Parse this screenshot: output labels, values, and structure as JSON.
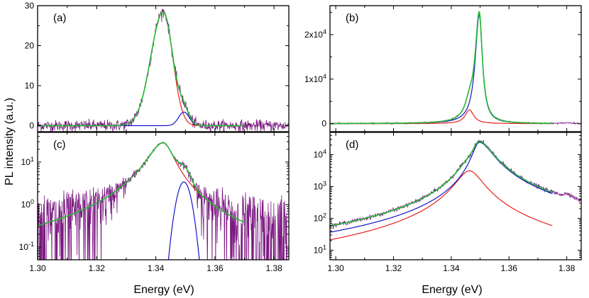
{
  "figure": {
    "ylabel": "PL intensity (a.u.)",
    "xlabel_left": "Energy (eV)",
    "xlabel_right": "Energy (eV)"
  },
  "colors": {
    "data": "#7b1a80",
    "fit_main": "#e8201e",
    "fit_side": "#1414c8",
    "fit_total": "#22bb33"
  },
  "chart_data": [
    {
      "panel": "(a)",
      "type": "line",
      "xlim": [
        1.3,
        1.385
      ],
      "ylim": [
        -1.5,
        30
      ],
      "yscale": "linear",
      "yticks": [
        {
          "v": 0,
          "label": "0"
        },
        {
          "v": 10,
          "label": "10"
        },
        {
          "v": 20,
          "label": "20"
        },
        {
          "v": 30,
          "label": "30"
        }
      ],
      "xticks": [],
      "noise": 0.7,
      "data_range": [
        1.3,
        1.385
      ],
      "fit_range": [
        1.3,
        1.37
      ],
      "peaks": [
        {
          "role": "main",
          "center": 1.3425,
          "amplitude": 28.5,
          "width_left": 0.0042,
          "width_right": 0.0032
        },
        {
          "role": "side",
          "center": 1.3495,
          "amplitude": 3.4,
          "width_left": 0.0018,
          "width_right": 0.0018
        }
      ]
    },
    {
      "panel": "(b)",
      "type": "line",
      "xlim": [
        1.298,
        1.385
      ],
      "ylim": [
        -1800,
        26500
      ],
      "yscale": "linear",
      "yticks": [
        {
          "v": 0,
          "label": "0"
        },
        {
          "v": 10000,
          "label": "1x10^4"
        },
        {
          "v": 20000,
          "label": "2x10^4"
        }
      ],
      "xticks": [],
      "noise": 80,
      "data_range": [
        1.298,
        1.385
      ],
      "fit_range": [
        1.298,
        1.375
      ],
      "peaks": [
        {
          "role": "main",
          "center": 1.3463,
          "amplitude": 3100,
          "width_left": 0.0018,
          "width_right": 0.0018,
          "lorentz": true
        },
        {
          "role": "side",
          "center": 1.3497,
          "amplitude": 24500,
          "width_left": 0.0017,
          "width_right": 0.0013,
          "lorentz": true
        }
      ],
      "side_peak": {
        "center": 1.3805,
        "amplitude": 150
      }
    },
    {
      "panel": "(c)",
      "type": "line",
      "xlim": [
        1.3,
        1.385
      ],
      "ylim": [
        0.05,
        50
      ],
      "yscale": "log",
      "yticks": [
        {
          "v": 0.1,
          "label": "10^-1"
        },
        {
          "v": 1,
          "label": "10^0"
        },
        {
          "v": 10,
          "label": "10^1"
        }
      ],
      "xticks": [
        "1.30",
        "1.32",
        "1.34",
        "1.36",
        "1.38"
      ],
      "noise": 0.7,
      "data_range": [
        1.3,
        1.385
      ],
      "fit_range": [
        1.3,
        1.37
      ],
      "peaks": [
        {
          "role": "main",
          "center": 1.3425,
          "amplitude": 28.5,
          "width_left": 0.0045,
          "width_right": 0.0032,
          "lorentz": true
        },
        {
          "role": "side",
          "center": 1.3495,
          "amplitude": 3.4,
          "width_left": 0.0018,
          "width_right": 0.0018
        }
      ]
    },
    {
      "panel": "(d)",
      "type": "line",
      "xlim": [
        1.298,
        1.385
      ],
      "ylim": [
        5,
        50000
      ],
      "yscale": "log",
      "yticks": [
        {
          "v": 10,
          "label": "10^1"
        },
        {
          "v": 100,
          "label": "10^2"
        },
        {
          "v": 1000,
          "label": "10^3"
        },
        {
          "v": 10000,
          "label": "10^4"
        }
      ],
      "xticks": [
        "1.30",
        "1.32",
        "1.34",
        "1.36",
        "1.38"
      ],
      "noise": 0.25,
      "data_range": [
        1.298,
        1.385
      ],
      "fit_range": [
        1.298,
        1.375
      ],
      "peaks": [
        {
          "role": "main",
          "center": 1.3463,
          "amplitude": 3100,
          "width_left": 0.004,
          "width_right": 0.004,
          "lorentz": true
        },
        {
          "role": "side",
          "center": 1.3497,
          "amplitude": 24500,
          "width_left": 0.002,
          "width_right": 0.004,
          "lorentz": true
        }
      ],
      "side_peak": {
        "center": 1.3805,
        "amplitude": 150
      }
    }
  ]
}
